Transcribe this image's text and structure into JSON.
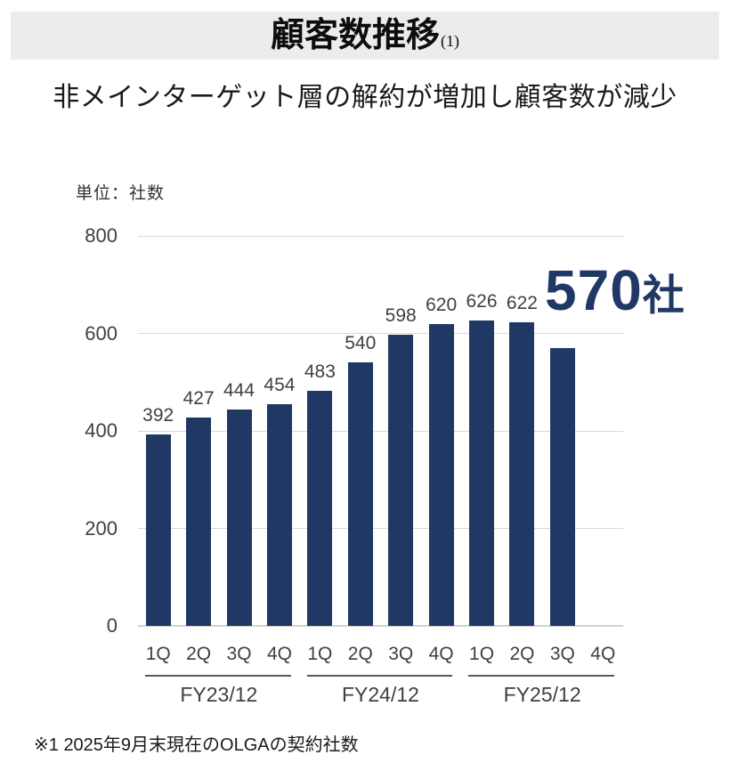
{
  "page": {
    "title": "顧客数推移",
    "title_note": "(1)",
    "subtitle": "非メインターゲット層の解約が増加し顧客数が減少",
    "unit_label": "単位：社数",
    "highlight_value": "570",
    "highlight_unit": "社",
    "footnote": "※1  2025年9月末現在のOLGAの契約社数"
  },
  "colors": {
    "bar": "#1F3864",
    "highlight_text": "#1F3864",
    "gridline": "#D9D9D9",
    "axis_line": "#D2D2D2",
    "tick_label": "#404040",
    "group_line": "#595959",
    "header_bg": "#ECECEC"
  },
  "chart_data": {
    "type": "bar",
    "title": "顧客数推移(1)",
    "unit": "社数",
    "x": [
      "1Q",
      "2Q",
      "3Q",
      "4Q",
      "1Q",
      "2Q",
      "3Q",
      "4Q",
      "1Q",
      "2Q",
      "3Q",
      "4Q"
    ],
    "values": [
      392,
      427,
      444,
      454,
      483,
      540,
      598,
      620,
      626,
      622,
      570,
      null
    ],
    "bar_labels": [
      "392",
      "427",
      "444",
      "454",
      "483",
      "540",
      "598",
      "620",
      "626",
      "622",
      "",
      ""
    ],
    "highlight_label": "570社",
    "highlighted_index": 10,
    "groups": [
      {
        "label": "FY23/12",
        "span": [
          0,
          3
        ]
      },
      {
        "label": "FY24/12",
        "span": [
          4,
          7
        ]
      },
      {
        "label": "FY25/12",
        "span": [
          8,
          11
        ]
      }
    ],
    "ylabel": "単位：社数",
    "ylim": [
      0,
      800
    ],
    "yticks": [
      0,
      200,
      400,
      600,
      800
    ],
    "grid": true,
    "legend": false
  }
}
